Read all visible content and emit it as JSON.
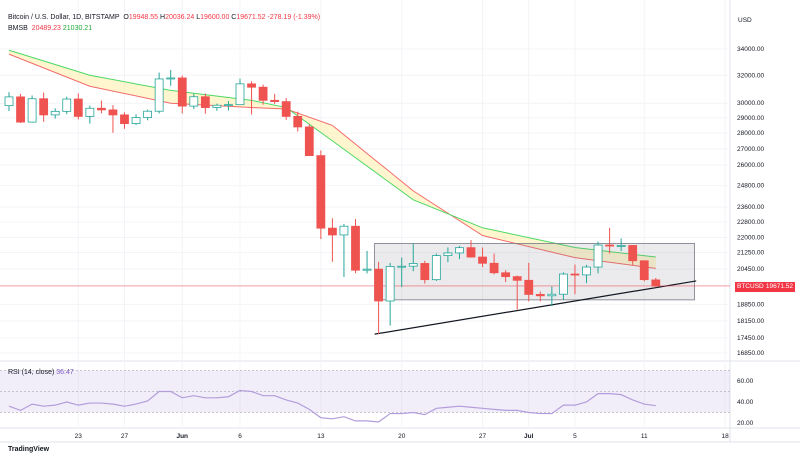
{
  "header": {
    "symbol": "Bitcoin / U.S. Dollar, 1D, BITSTAMP",
    "o_label": "O",
    "o": "19948.55",
    "h_label": "H",
    "h": "20036.24",
    "l_label": "L",
    "l": "19600.00",
    "c_label": "C",
    "c": "19671.52",
    "change": "-278.19 (-1.39%)",
    "indicator": "BMSB",
    "ind_v1": "20489.23",
    "ind_v2": "21030.21"
  },
  "price_axis": {
    "currency": "USD",
    "labels": [
      "34000.00",
      "32000.00",
      "30000.00",
      "29000.00",
      "28000.00",
      "27000.00",
      "26000.00",
      "24800.00",
      "23600.00",
      "22800.00",
      "22000.00",
      "21250.00",
      "20450.00",
      "18850.00",
      "18150.00",
      "17450.00",
      "16850.00"
    ],
    "price_tag_symbol": "BTCUSD",
    "price_tag_value": "19671.52"
  },
  "rsi": {
    "label": "RSI (14, close)",
    "value": "36.47",
    "axis": [
      "60.00",
      "40.00",
      "20.00"
    ]
  },
  "time_axis": [
    {
      "label": "23",
      "day": 6
    },
    {
      "label": "27",
      "day": 10
    },
    {
      "label": "Jun",
      "day": 15
    },
    {
      "label": "6",
      "day": 20
    },
    {
      "label": "13",
      "day": 27
    },
    {
      "label": "20",
      "day": 34
    },
    {
      "label": "27",
      "day": 41
    },
    {
      "label": "Jul",
      "day": 45
    },
    {
      "label": "5",
      "day": 49
    },
    {
      "label": "11",
      "day": 55
    },
    {
      "label": "18",
      "day": 62
    }
  ],
  "footer": {
    "brand": "TradingView"
  },
  "colors": {
    "up": "#26a69a",
    "down": "#ef5350",
    "sma": "#f26b6b",
    "ema": "#4cd964",
    "rsi": "#b39ddb"
  },
  "chart_data": {
    "type": "candlestick",
    "title": "Bitcoin / U.S. Dollar, 1D, BITSTAMP",
    "start_date": "2022-05-17",
    "ylim": [
      16500,
      35000
    ],
    "yscale": "log",
    "ohlc": [
      [
        29830,
        30780,
        29460,
        30440
      ],
      [
        30440,
        30650,
        28660,
        28720
      ],
      [
        28720,
        30540,
        28680,
        30310
      ],
      [
        30310,
        30750,
        28740,
        29200
      ],
      [
        29200,
        29650,
        28950,
        29440
      ],
      [
        29440,
        30450,
        29250,
        30290
      ],
      [
        30290,
        30680,
        28900,
        29100
      ],
      [
        29100,
        29830,
        28620,
        29650
      ],
      [
        29650,
        30180,
        29300,
        29540
      ],
      [
        29540,
        29870,
        28020,
        29200
      ],
      [
        29200,
        29370,
        28280,
        28620
      ],
      [
        28620,
        29240,
        28520,
        29020
      ],
      [
        29020,
        29560,
        28840,
        29450
      ],
      [
        29450,
        32200,
        29300,
        31730
      ],
      [
        31730,
        32390,
        31230,
        31800
      ],
      [
        31800,
        31980,
        29300,
        29800
      ],
      [
        29800,
        30660,
        29600,
        30450
      ],
      [
        30450,
        30670,
        29280,
        29700
      ],
      [
        29700,
        29970,
        29480,
        29860
      ],
      [
        29860,
        30150,
        29500,
        29900
      ],
      [
        29900,
        31750,
        29880,
        31370
      ],
      [
        31370,
        31560,
        29230,
        31130
      ],
      [
        31130,
        31320,
        29900,
        30200
      ],
      [
        30200,
        30650,
        29950,
        30110
      ],
      [
        30110,
        30360,
        28870,
        29100
      ],
      [
        29100,
        29420,
        28100,
        28400
      ],
      [
        28400,
        28560,
        26600,
        26580
      ],
      [
        26580,
        26900,
        21920,
        22480
      ],
      [
        22480,
        23000,
        20800,
        22130
      ],
      [
        22130,
        22700,
        20080,
        22580
      ],
      [
        22580,
        22960,
        20260,
        20400
      ],
      [
        20400,
        21330,
        20250,
        20450
      ],
      [
        20450,
        20800,
        17600,
        19000
      ],
      [
        19000,
        20750,
        17950,
        20580
      ],
      [
        20580,
        21000,
        19620,
        20590
      ],
      [
        20590,
        21700,
        20350,
        20720
      ],
      [
        20720,
        20850,
        19780,
        19960
      ],
      [
        19960,
        21200,
        19900,
        21100
      ],
      [
        21100,
        21500,
        20780,
        21230
      ],
      [
        21230,
        21580,
        20930,
        21490
      ],
      [
        21490,
        21870,
        21000,
        21030
      ],
      [
        21030,
        21500,
        20550,
        20730
      ],
      [
        20730,
        21200,
        20200,
        20280
      ],
      [
        20280,
        20400,
        19850,
        20100
      ],
      [
        20100,
        20150,
        18630,
        19930
      ],
      [
        19930,
        20750,
        18980,
        19290
      ],
      [
        19290,
        19420,
        18980,
        19230
      ],
      [
        19230,
        19650,
        18780,
        19300
      ],
      [
        19300,
        20300,
        19050,
        20220
      ],
      [
        20220,
        20670,
        19300,
        20180
      ],
      [
        20180,
        20650,
        19800,
        20550
      ],
      [
        20550,
        21800,
        20250,
        21620
      ],
      [
        21620,
        22500,
        21200,
        21580
      ],
      [
        21580,
        21950,
        21320,
        21600
      ],
      [
        21600,
        21600,
        20650,
        20850
      ],
      [
        20850,
        20850,
        19880,
        19960
      ],
      [
        19948.55,
        20036.24,
        19600,
        19671.52
      ]
    ],
    "sma_points": [
      [
        0,
        33600
      ],
      [
        7,
        31200
      ],
      [
        14,
        30000
      ],
      [
        21,
        29700
      ],
      [
        24,
        29600
      ],
      [
        28,
        28500
      ],
      [
        35,
        24500
      ],
      [
        41,
        22100
      ],
      [
        49,
        21000
      ],
      [
        56,
        20489
      ]
    ],
    "ema_points": [
      [
        0,
        33900
      ],
      [
        7,
        32000
      ],
      [
        14,
        30900
      ],
      [
        21,
        30200
      ],
      [
        24,
        29700
      ],
      [
        28,
        27500
      ],
      [
        35,
        24000
      ],
      [
        41,
        22500
      ],
      [
        49,
        21500
      ],
      [
        56,
        21030
      ]
    ],
    "rectangle": {
      "day_from": 32,
      "day_to": 59,
      "price_low": 19050,
      "price_high": 21700
    },
    "trendline": {
      "day_from": 32,
      "price_from": 17600,
      "day_to": 59.5,
      "price_to": 19900
    },
    "rsi_values": [
      36,
      32,
      38,
      36,
      37,
      40,
      37,
      39,
      39,
      38,
      36,
      38,
      41,
      50,
      50,
      44,
      46,
      44,
      44,
      45,
      51,
      50,
      46,
      46,
      42,
      39,
      33,
      25,
      24,
      26,
      22,
      22,
      21,
      29,
      29,
      30,
      28,
      34,
      35,
      36,
      35,
      34,
      33,
      32,
      32,
      30,
      29,
      29,
      37,
      37,
      40,
      48,
      48,
      47,
      42,
      38,
      36.47
    ],
    "rsi_band": [
      30,
      70
    ]
  }
}
